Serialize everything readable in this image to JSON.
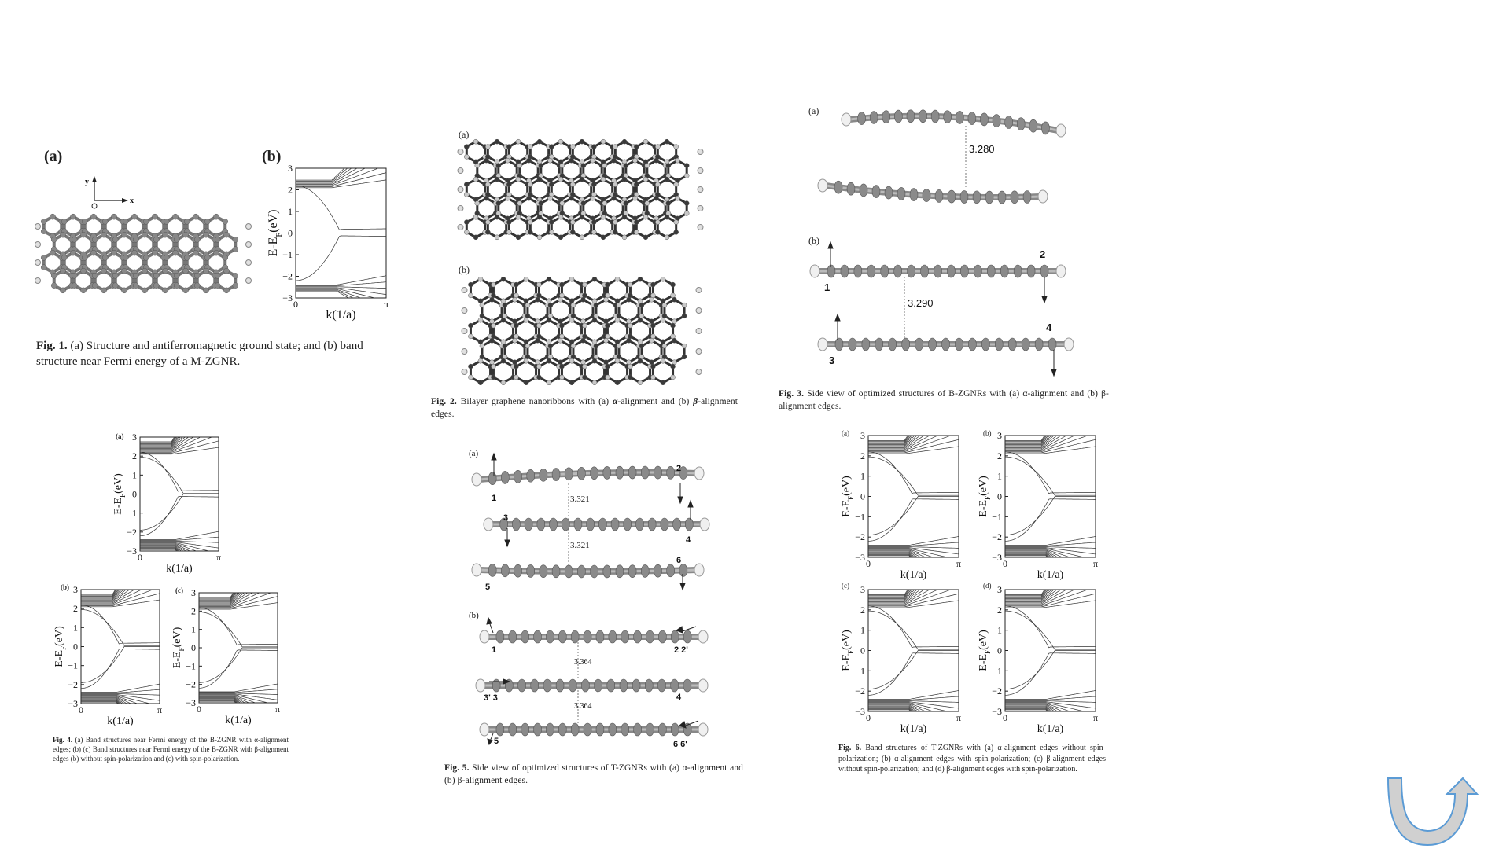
{
  "fig1": {
    "label_a": "(a)",
    "label_b": "(b)",
    "axis_y": "y",
    "axis_x": "x",
    "axis_o": "O",
    "caption_label": "Fig. 1.",
    "caption_text": "(a) Structure and antiferromagnetic ground state; and (b) band structure near Fermi energy of a M-ZGNR."
  },
  "fig2": {
    "label_a": "(a)",
    "label_b": "(b)",
    "caption_label": "Fig. 2.",
    "caption_text_1": "Bilayer graphene nanoribbons with (a) ",
    "caption_text_2": "-alignment and (b) ",
    "caption_text_3": "-alignment edges.",
    "alpha": "α",
    "beta": "β"
  },
  "fig3": {
    "label_a": "(a)",
    "label_b": "(b)",
    "dist_a": "3.280",
    "dist_b": "3.290",
    "n1": "1",
    "n2": "2",
    "n3": "3",
    "n4": "4",
    "caption_label": "Fig. 3.",
    "caption_text": "Side view of optimized structures of B-ZGNRs with (a) α-alignment and (b) β-alignment edges."
  },
  "fig4": {
    "label_a": "(a)",
    "label_b": "(b)",
    "label_c": "(c)",
    "caption_label": "Fig. 4.",
    "caption_text": "(a) Band structures near Fermi energy of the B-ZGNR with α-alignment edges; (b) (c) Band structures near Fermi energy of the B-ZGNR with β-alignment edges (b) without spin-polarization and (c) with spin-polarization."
  },
  "fig5": {
    "label_a": "(a)",
    "label_b": "(b)",
    "dist_a1": "3.321",
    "dist_a2": "3.321",
    "dist_b1": "3.364",
    "dist_b2": "3.364",
    "a_n1": "1",
    "a_n2": "2",
    "a_n3": "3",
    "a_n4": "4",
    "a_n5": "5",
    "a_n6": "6",
    "b_n1": "1",
    "b_n22": "2 2'",
    "b_n33": "3' 3",
    "b_n4": "4",
    "b_n5": "5",
    "b_n66": "6 6'",
    "caption_label": "Fig. 5.",
    "caption_text": "Side view of optimized structures of T-ZGNRs with (a) α-alignment and (b) β-alignment edges."
  },
  "fig6": {
    "label_a": "(a)",
    "label_b": "(b)",
    "label_c": "(c)",
    "label_d": "(d)",
    "caption_label": "Fig. 6.",
    "caption_text": "Band structures of T-ZGNRs with (a) α-alignment edges without spin-polarization; (b) α-alignment edges with spin-polarization; (c) β-alignment edges without spin-polarization; and (d) β-alignment edges with spin-polarization."
  },
  "plots": {
    "ylabel": "E-E",
    "ylabel_sub": "F",
    "ylabel_unit": "(eV)",
    "xlabel": "k(1/a)",
    "x_start": "0",
    "x_end": "π",
    "yticks": [
      "3",
      "2",
      "1",
      "0",
      "−1",
      "−2",
      "−3"
    ]
  },
  "colors": {
    "arrow_fill": "#d0d0d0",
    "arrow_stroke": "#5b9bd5",
    "atom_dark": "#3a3a3a",
    "atom_light": "#c8c8c8"
  },
  "icons": {
    "nav": "u-turn-arrow-icon"
  }
}
